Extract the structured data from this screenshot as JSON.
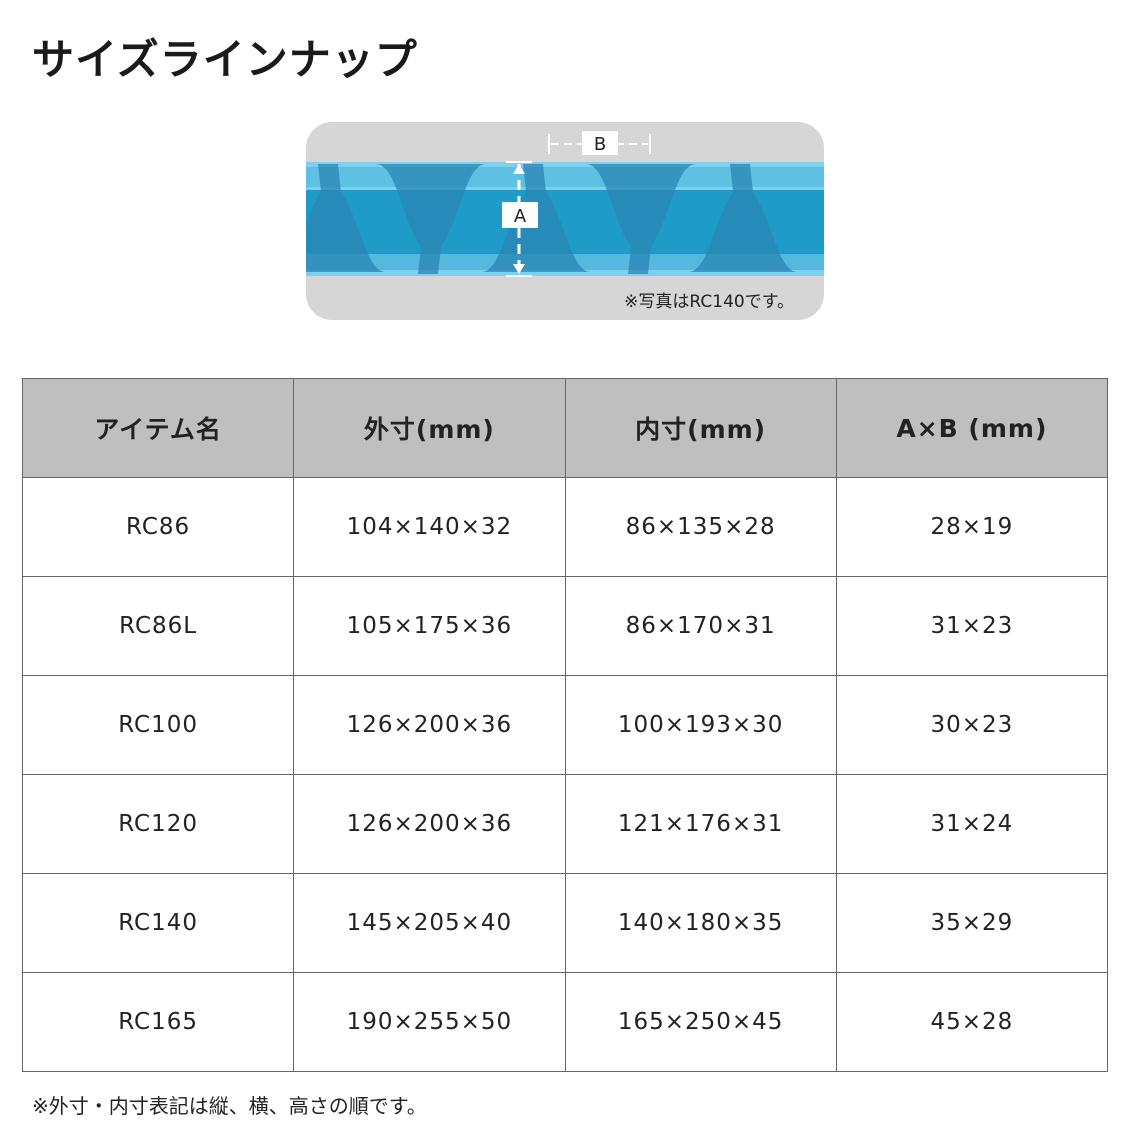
{
  "page_title": "サイズラインナップ",
  "photo": {
    "label_a": "A",
    "label_b": "B",
    "caption": "※写真はRC140です。",
    "colors": {
      "background": "#d6d6d6",
      "tray": "#1e9bc8"
    }
  },
  "table": {
    "headers": [
      "アイテム名",
      "外寸(mm)",
      "内寸(mm)",
      "A×B (mm)"
    ],
    "rows": [
      [
        "RC86",
        "104×140×32",
        "86×135×28",
        "28×19"
      ],
      [
        "RC86L",
        "105×175×36",
        "86×170×31",
        "31×23"
      ],
      [
        "RC100",
        "126×200×36",
        "100×193×30",
        "30×23"
      ],
      [
        "RC120",
        "126×200×36",
        "121×176×31",
        "31×24"
      ],
      [
        "RC140",
        "145×205×40",
        "140×180×35",
        "35×29"
      ],
      [
        "RC165",
        "190×255×50",
        "165×250×45",
        "45×28"
      ]
    ]
  },
  "note": "※外寸・内寸表記は縦、横、高さの順です。"
}
